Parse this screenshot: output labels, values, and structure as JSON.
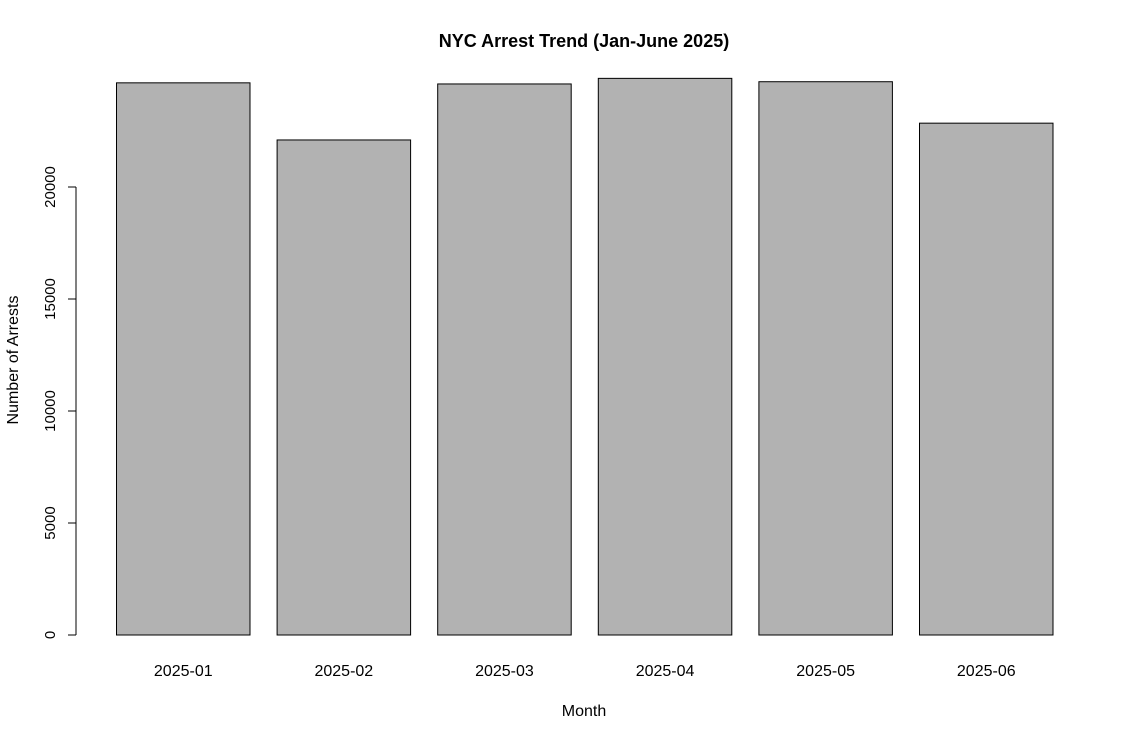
{
  "chart_data": {
    "type": "bar",
    "title": "NYC Arrest Trend (Jan-June 2025)",
    "xlabel": "Month",
    "ylabel": "Number of Arrests",
    "categories": [
      "2025-01",
      "2025-02",
      "2025-03",
      "2025-04",
      "2025-05",
      "2025-06"
    ],
    "values": [
      24650,
      22100,
      24600,
      24850,
      24700,
      22850
    ],
    "yticks": [
      0,
      5000,
      10000,
      15000,
      20000
    ],
    "ytick_labels": [
      "0",
      "5000",
      "10000",
      "15000",
      "20000"
    ],
    "ylim": [
      0,
      25000
    ],
    "grid": false,
    "legend": "none",
    "bar_color": "#b2b2b2",
    "bar_border_color": "#000000"
  }
}
